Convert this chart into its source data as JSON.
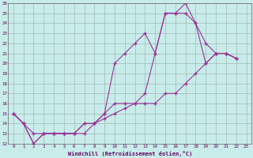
{
  "xlabel": "Windchill (Refroidissement éolien,°C)",
  "background_color": "#c8ece9",
  "grid_color": "#a0b8b8",
  "line_color": "#993399",
  "xlim": [
    -0.5,
    23.5
  ],
  "ylim": [
    12,
    26
  ],
  "xticks": [
    0,
    1,
    2,
    3,
    4,
    5,
    6,
    7,
    8,
    9,
    10,
    11,
    12,
    13,
    14,
    15,
    16,
    17,
    18,
    19,
    20,
    21,
    22,
    23
  ],
  "yticks": [
    12,
    13,
    14,
    15,
    16,
    17,
    18,
    19,
    20,
    21,
    22,
    23,
    24,
    25,
    26
  ],
  "series": [
    [
      15,
      14,
      12,
      13,
      13,
      13,
      13,
      14,
      14,
      15,
      20,
      21,
      22,
      23,
      21,
      25,
      25,
      26,
      24,
      22,
      21,
      21,
      20.5
    ],
    [
      15,
      14,
      12,
      13,
      13,
      13,
      13,
      14,
      14,
      15,
      16,
      16,
      16,
      17,
      21,
      25,
      25,
      25,
      24,
      20,
      21,
      21,
      20.5
    ],
    [
      15,
      14,
      13,
      13,
      13,
      13,
      13,
      13,
      14,
      14.5,
      15,
      15.5,
      16,
      16,
      16,
      17,
      17,
      18,
      19,
      20,
      21,
      21,
      20.5
    ]
  ]
}
